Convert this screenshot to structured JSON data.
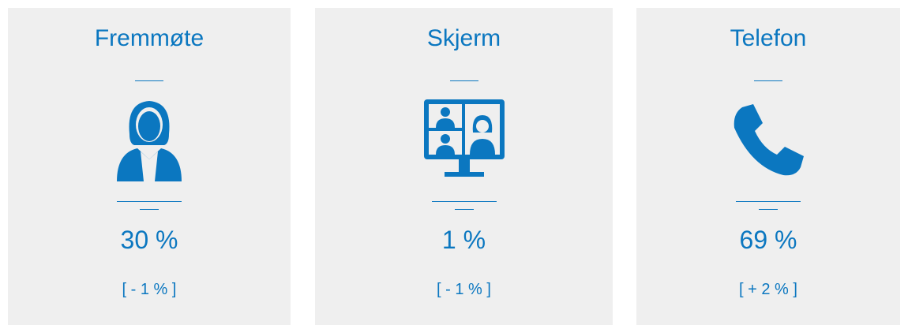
{
  "cards": [
    {
      "title": "Fremmøte",
      "value": "30 %",
      "change": "[ - 1 % ]"
    },
    {
      "title": "Skjerm",
      "value": "1 %",
      "change": "[ - 1 % ]"
    },
    {
      "title": "Telefon",
      "value": "69 %",
      "change": "[ + 2 % ]"
    }
  ]
}
